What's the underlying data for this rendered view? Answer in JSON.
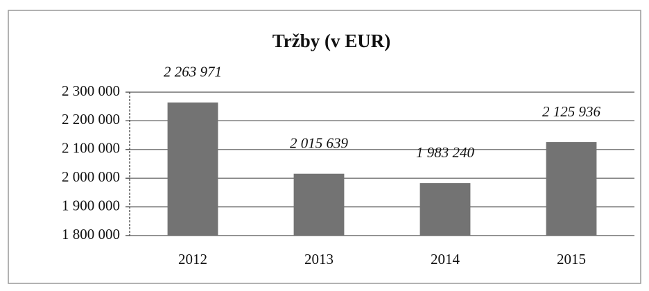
{
  "chart_data": {
    "type": "bar",
    "title": "Tržby (v EUR)",
    "categories": [
      "2012",
      "2013",
      "2014",
      "2015"
    ],
    "values": [
      2263971,
      2015639,
      1983240,
      2125936
    ],
    "value_labels": [
      "2 263 971",
      "2 015 639",
      "1 983 240",
      "2 125 936"
    ],
    "color": "#737373",
    "ylim": [
      1800000,
      2300000
    ],
    "yticks": [
      {
        "value": 1800000,
        "label": "1 800 000"
      },
      {
        "value": 1900000,
        "label": "1 900 000"
      },
      {
        "value": 2000000,
        "label": "2 000 000"
      },
      {
        "value": 2100000,
        "label": "2 100 000"
      },
      {
        "value": 2200000,
        "label": "2 200 000"
      },
      {
        "value": 2300000,
        "label": "2 300 000"
      }
    ],
    "grid": true
  }
}
